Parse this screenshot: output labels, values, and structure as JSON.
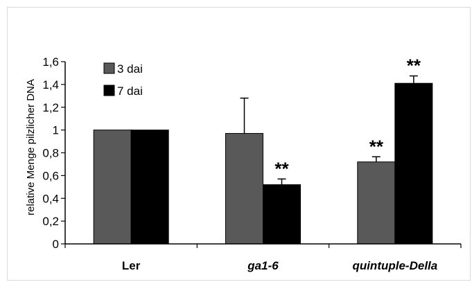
{
  "chart_data": {
    "type": "bar",
    "categories": [
      "Ler",
      "ga1-6",
      "quintuple-Della"
    ],
    "categories_italic": [
      false,
      true,
      true
    ],
    "series": [
      {
        "name": "3 dai",
        "values": [
          1.0,
          0.97,
          0.72
        ],
        "errors": [
          0,
          0.31,
          0.045
        ],
        "significance": [
          "",
          "",
          "**"
        ],
        "color": "#595959"
      },
      {
        "name": "7 dai",
        "values": [
          1.0,
          0.52,
          1.41
        ],
        "errors": [
          0,
          0.05,
          0.065
        ],
        "significance": [
          "",
          "**",
          "**"
        ],
        "color": "#000000"
      }
    ],
    "ylabel": "relative Menge pilzlicher DNA",
    "xlabel": "",
    "ylim": [
      0,
      1.6
    ],
    "yticks": [
      "0",
      "0,2",
      "0,4",
      "0,6",
      "0,8",
      "1",
      "1,2",
      "1,4",
      "1,6"
    ],
    "grid": false,
    "legend_position": "top-left"
  }
}
